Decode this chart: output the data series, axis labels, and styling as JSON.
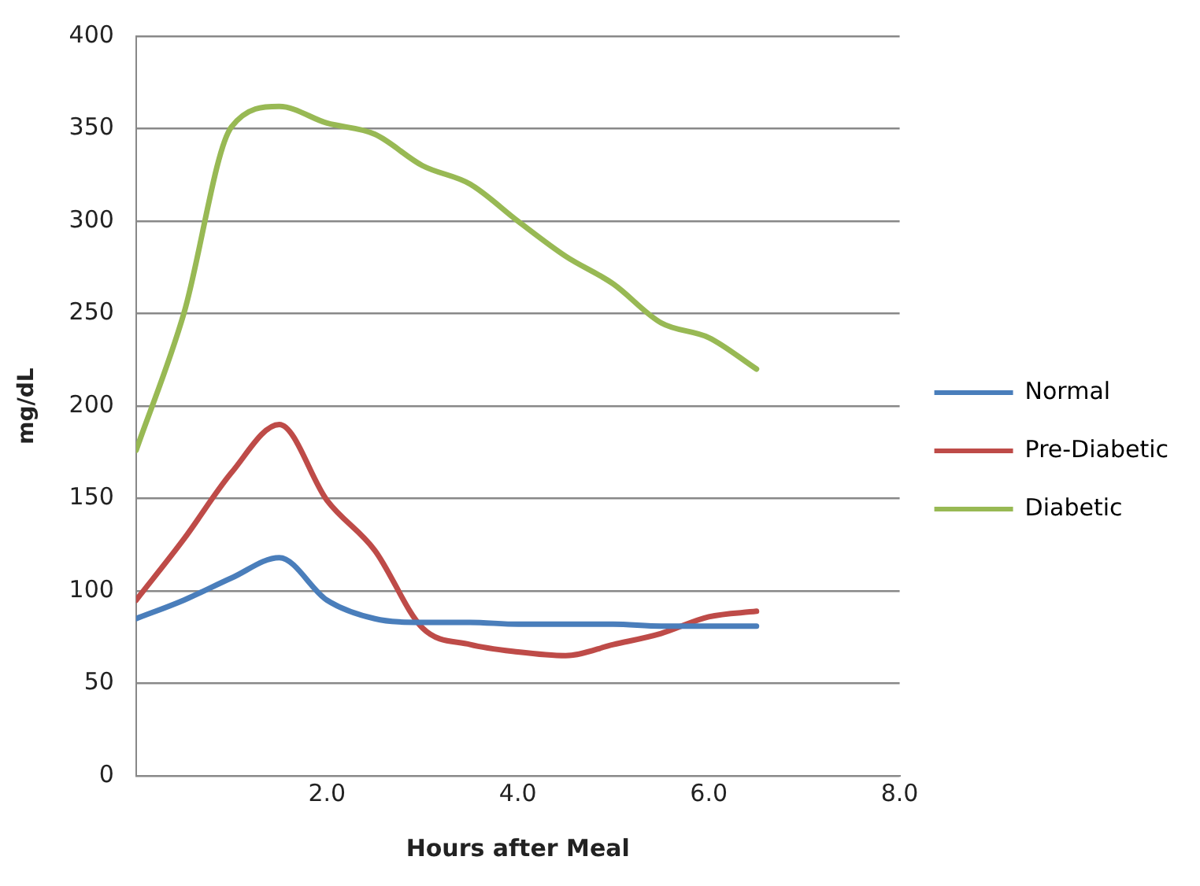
{
  "chart_data": {
    "type": "line",
    "xlabel": "Hours after Meal",
    "ylabel": "mg/dL",
    "x": [
      0,
      0.5,
      1,
      1.5,
      2,
      2.5,
      3,
      3.5,
      4,
      4.5,
      5,
      5.5,
      6,
      6.5
    ],
    "series": [
      {
        "name": "Normal",
        "color": "#4a7ebb",
        "values": [
          85,
          95,
          107,
          118,
          95,
          85,
          83,
          83,
          82,
          82,
          82,
          81,
          81,
          81
        ]
      },
      {
        "name": "Pre-Diabetic",
        "color": "#be4b48",
        "values": [
          95,
          128,
          164,
          190,
          149,
          122,
          80,
          71,
          67,
          65,
          71,
          77,
          86,
          89
        ]
      },
      {
        "name": "Diabetic",
        "color": "#98b954",
        "values": [
          176,
          250,
          351,
          362,
          353,
          347,
          330,
          320,
          300,
          281,
          266,
          245,
          237,
          220
        ]
      }
    ],
    "xlim": [
      0,
      8
    ],
    "xticks": [
      {
        "value": 0,
        "label": null
      },
      {
        "value": 2,
        "label": "2.0"
      },
      {
        "value": 4,
        "label": "4.0"
      },
      {
        "value": 6,
        "label": "6.0"
      },
      {
        "value": 8,
        "label": "8.0"
      }
    ],
    "ylim": [
      0,
      400
    ],
    "yticks": [
      0,
      50,
      100,
      150,
      200,
      250,
      300,
      350,
      400
    ],
    "grid": "y",
    "legend": "right",
    "marker": "none",
    "line_style": "solid"
  }
}
